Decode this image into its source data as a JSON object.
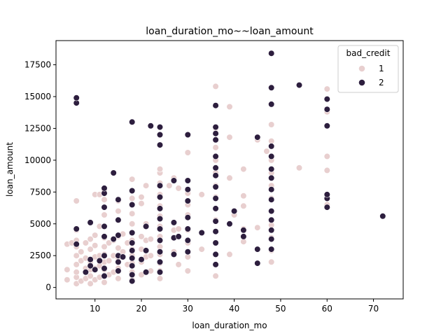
{
  "chart_data": {
    "type": "scatter",
    "title": "loan_duration_mo~~loan_amount",
    "xlabel": "loan_duration_mo",
    "ylabel": "loan_amount",
    "xlim": [
      1.6,
      76.4
    ],
    "ylim": [
      -900,
      19400
    ],
    "xticks": [
      10,
      20,
      30,
      40,
      50,
      60,
      70
    ],
    "yticks": [
      0,
      2500,
      5000,
      7500,
      10000,
      12500,
      15000,
      17500
    ],
    "legend": {
      "title": "bad_credit",
      "placement": "top-right"
    },
    "colors": {
      "1": "#e8cfcf",
      "2": "#2d1e3e"
    },
    "series": [
      {
        "name": "1",
        "color": "#e8cfcf",
        "points": [
          [
            4,
            600
          ],
          [
            4,
            1400
          ],
          [
            4,
            3400
          ],
          [
            5,
            3500
          ],
          [
            6,
            300
          ],
          [
            6,
            800
          ],
          [
            6,
            1200
          ],
          [
            6,
            1800
          ],
          [
            6,
            2500
          ],
          [
            6,
            3200
          ],
          [
            6,
            3700
          ],
          [
            6,
            4500
          ],
          [
            6,
            6800
          ],
          [
            7,
            500
          ],
          [
            7,
            2100
          ],
          [
            7,
            2800
          ],
          [
            8,
            700
          ],
          [
            8,
            1500
          ],
          [
            8,
            2300
          ],
          [
            8,
            3500
          ],
          [
            9,
            300
          ],
          [
            9,
            900
          ],
          [
            9,
            1400
          ],
          [
            9,
            2000
          ],
          [
            9,
            3000
          ],
          [
            9,
            3800
          ],
          [
            10,
            600
          ],
          [
            10,
            1500
          ],
          [
            10,
            2400
          ],
          [
            10,
            3300
          ],
          [
            10,
            4100
          ],
          [
            10,
            7300
          ],
          [
            11,
            800
          ],
          [
            11,
            1700
          ],
          [
            11,
            2500
          ],
          [
            11,
            4800
          ],
          [
            11,
            7300
          ],
          [
            12,
            400
          ],
          [
            12,
            900
          ],
          [
            12,
            1400
          ],
          [
            12,
            2000
          ],
          [
            12,
            2600
          ],
          [
            12,
            3200
          ],
          [
            12,
            3900
          ],
          [
            12,
            4800
          ],
          [
            12,
            5700
          ],
          [
            12,
            6900
          ],
          [
            12,
            7600
          ],
          [
            13,
            1000
          ],
          [
            13,
            2100
          ],
          [
            13,
            3500
          ],
          [
            14,
            1200
          ],
          [
            14,
            2500
          ],
          [
            14,
            3700
          ],
          [
            15,
            700
          ],
          [
            15,
            1500
          ],
          [
            15,
            2300
          ],
          [
            15,
            3100
          ],
          [
            15,
            4000
          ],
          [
            15,
            6000
          ],
          [
            15,
            6800
          ],
          [
            16,
            2800
          ],
          [
            16,
            4200
          ],
          [
            17,
            1800
          ],
          [
            17,
            3500
          ],
          [
            18,
            600
          ],
          [
            18,
            1200
          ],
          [
            18,
            1900
          ],
          [
            18,
            2500
          ],
          [
            18,
            3000
          ],
          [
            18,
            3700
          ],
          [
            18,
            4300
          ],
          [
            18,
            5000
          ],
          [
            18,
            5800
          ],
          [
            18,
            7000
          ],
          [
            18,
            8500
          ],
          [
            20,
            1000
          ],
          [
            20,
            2000
          ],
          [
            20,
            3000
          ],
          [
            20,
            4000
          ],
          [
            20,
            6600
          ],
          [
            20,
            7100
          ],
          [
            21,
            2400
          ],
          [
            21,
            3700
          ],
          [
            21,
            5000
          ],
          [
            21,
            8000
          ],
          [
            22,
            1300
          ],
          [
            22,
            2500
          ],
          [
            22,
            3800
          ],
          [
            24,
            700
          ],
          [
            24,
            1300
          ],
          [
            24,
            1900
          ],
          [
            24,
            2600
          ],
          [
            24,
            3200
          ],
          [
            24,
            4000
          ],
          [
            24,
            4800
          ],
          [
            24,
            5600
          ],
          [
            24,
            6400
          ],
          [
            24,
            7300
          ],
          [
            24,
            8200
          ],
          [
            24,
            9000
          ],
          [
            24,
            9300
          ],
          [
            26,
            8000
          ],
          [
            27,
            2800
          ],
          [
            27,
            4500
          ],
          [
            27,
            8600
          ],
          [
            28,
            1800
          ],
          [
            28,
            4600
          ],
          [
            28,
            7800
          ],
          [
            30,
            1300
          ],
          [
            30,
            2400
          ],
          [
            30,
            3500
          ],
          [
            30,
            4500
          ],
          [
            30,
            5700
          ],
          [
            30,
            6500
          ],
          [
            30,
            7400
          ],
          [
            30,
            10600
          ],
          [
            33,
            3000
          ],
          [
            33,
            7300
          ],
          [
            36,
            900
          ],
          [
            36,
            1800
          ],
          [
            36,
            2600
          ],
          [
            36,
            3500
          ],
          [
            36,
            4400
          ],
          [
            36,
            5300
          ],
          [
            36,
            6200
          ],
          [
            36,
            7100
          ],
          [
            36,
            8000
          ],
          [
            36,
            9000
          ],
          [
            36,
            10000
          ],
          [
            36,
            11000
          ],
          [
            36,
            12500
          ],
          [
            36,
            15800
          ],
          [
            39,
            2600
          ],
          [
            39,
            8600
          ],
          [
            39,
            11800
          ],
          [
            39,
            14200
          ],
          [
            40,
            5700
          ],
          [
            42,
            3600
          ],
          [
            42,
            4600
          ],
          [
            42,
            6400
          ],
          [
            42,
            7200
          ],
          [
            42,
            9300
          ],
          [
            45,
            4700
          ],
          [
            45,
            11600
          ],
          [
            47,
            10700
          ],
          [
            48,
            2000
          ],
          [
            48,
            2900
          ],
          [
            48,
            3900
          ],
          [
            48,
            4900
          ],
          [
            48,
            6000
          ],
          [
            48,
            7000
          ],
          [
            48,
            8000
          ],
          [
            48,
            9000
          ],
          [
            48,
            10000
          ],
          [
            48,
            11500
          ],
          [
            48,
            12800
          ],
          [
            54,
            9400
          ],
          [
            60,
            6500
          ],
          [
            60,
            9200
          ],
          [
            60,
            10300
          ],
          [
            60,
            13800
          ],
          [
            60,
            15600
          ]
        ]
      },
      {
        "name": "2",
        "color": "#2d1e3e",
        "points": [
          [
            6,
            14500
          ],
          [
            6,
            14900
          ],
          [
            6,
            3400
          ],
          [
            6,
            4600
          ],
          [
            8,
            1200
          ],
          [
            9,
            1700
          ],
          [
            9,
            2200
          ],
          [
            9,
            5100
          ],
          [
            10,
            1400
          ],
          [
            11,
            2100
          ],
          [
            12,
            900
          ],
          [
            12,
            1500
          ],
          [
            12,
            2500
          ],
          [
            12,
            4000
          ],
          [
            12,
            4800
          ],
          [
            12,
            6300
          ],
          [
            12,
            7400
          ],
          [
            12,
            7800
          ],
          [
            14,
            3800
          ],
          [
            14,
            9000
          ],
          [
            15,
            1300
          ],
          [
            15,
            2000
          ],
          [
            15,
            2500
          ],
          [
            15,
            4100
          ],
          [
            15,
            5300
          ],
          [
            15,
            6900
          ],
          [
            16,
            2400
          ],
          [
            18,
            500
          ],
          [
            18,
            1000
          ],
          [
            18,
            1700
          ],
          [
            18,
            2300
          ],
          [
            18,
            2900
          ],
          [
            18,
            3500
          ],
          [
            18,
            4300
          ],
          [
            18,
            6500
          ],
          [
            18,
            7600
          ],
          [
            18,
            13000
          ],
          [
            20,
            2200
          ],
          [
            21,
            1200
          ],
          [
            21,
            2900
          ],
          [
            21,
            4800
          ],
          [
            22,
            12700
          ],
          [
            24,
            1200
          ],
          [
            24,
            2000
          ],
          [
            24,
            2800
          ],
          [
            24,
            3700
          ],
          [
            24,
            4600
          ],
          [
            24,
            5400
          ],
          [
            24,
            6200
          ],
          [
            24,
            7100
          ],
          [
            24,
            8000
          ],
          [
            24,
            11200
          ],
          [
            24,
            12000
          ],
          [
            24,
            12600
          ],
          [
            27,
            2600
          ],
          [
            27,
            3900
          ],
          [
            27,
            5100
          ],
          [
            27,
            8400
          ],
          [
            28,
            4000
          ],
          [
            30,
            2800
          ],
          [
            30,
            3700
          ],
          [
            30,
            4600
          ],
          [
            30,
            5500
          ],
          [
            30,
            6800
          ],
          [
            30,
            7700
          ],
          [
            30,
            8400
          ],
          [
            30,
            12000
          ],
          [
            33,
            4300
          ],
          [
            36,
            1800
          ],
          [
            36,
            2600
          ],
          [
            36,
            3500
          ],
          [
            36,
            4400
          ],
          [
            36,
            5200
          ],
          [
            36,
            6200
          ],
          [
            36,
            7000
          ],
          [
            36,
            7900
          ],
          [
            36,
            8800
          ],
          [
            36,
            9400
          ],
          [
            36,
            10300
          ],
          [
            36,
            11600
          ],
          [
            36,
            12100
          ],
          [
            36,
            12600
          ],
          [
            36,
            14300
          ],
          [
            39,
            5000
          ],
          [
            40,
            6000
          ],
          [
            42,
            4000
          ],
          [
            42,
            4500
          ],
          [
            45,
            1900
          ],
          [
            45,
            3000
          ],
          [
            45,
            11800
          ],
          [
            48,
            3000
          ],
          [
            48,
            3800
          ],
          [
            48,
            4500
          ],
          [
            48,
            5300
          ],
          [
            48,
            6000
          ],
          [
            48,
            6900
          ],
          [
            48,
            7700
          ],
          [
            48,
            8600
          ],
          [
            48,
            9300
          ],
          [
            48,
            10300
          ],
          [
            48,
            11100
          ],
          [
            48,
            14400
          ],
          [
            48,
            15700
          ],
          [
            48,
            18400
          ],
          [
            54,
            15900
          ],
          [
            60,
            6300
          ],
          [
            60,
            7000
          ],
          [
            60,
            7300
          ],
          [
            60,
            12700
          ],
          [
            60,
            14000
          ],
          [
            60,
            14800
          ],
          [
            72,
            5600
          ]
        ]
      }
    ]
  }
}
